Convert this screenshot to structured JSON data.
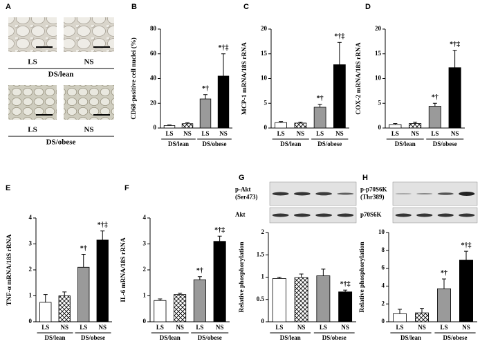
{
  "images": {
    "panel": "A",
    "rows": [
      {
        "labels": [
          "LS",
          "NS"
        ],
        "group": "DS/lean"
      },
      {
        "labels": [
          "LS",
          "NS"
        ],
        "group": "DS/obese"
      }
    ]
  },
  "blots": [
    {
      "panel": "G",
      "rows": [
        {
          "label": [
            "p-Akt",
            "(Ser473)"
          ]
        },
        {
          "label": [
            "Akt"
          ]
        }
      ]
    },
    {
      "panel": "H",
      "rows": [
        {
          "label": [
            "p-p70S6K",
            "(Thr389)"
          ]
        },
        {
          "label": [
            "p70S6K"
          ]
        }
      ]
    }
  ],
  "chart_data": [
    {
      "type": "bar",
      "panel": "B",
      "ylabel": "CD68-positive cell nuclei (%)",
      "categories": [
        "LS",
        "NS",
        "LS",
        "NS"
      ],
      "groups": [
        "DS/lean",
        "DS/obese"
      ],
      "values": [
        2,
        3.5,
        23.5,
        42
      ],
      "errors": [
        0.5,
        0.8,
        3.5,
        18
      ],
      "annotations": [
        null,
        null,
        "*†",
        "*†‡"
      ],
      "ylim": [
        0,
        80
      ],
      "yticks": [
        0,
        20,
        40,
        60,
        80
      ],
      "fills": [
        "#ffffff",
        "#ffffff",
        "#9a9a9a",
        "#000000"
      ],
      "hatch": [
        false,
        true,
        false,
        false
      ]
    },
    {
      "type": "bar",
      "panel": "C",
      "ylabel": "MCP-1 mRNA/18S rRNA",
      "categories": [
        "LS",
        "NS",
        "LS",
        "NS"
      ],
      "groups": [
        "DS/lean",
        "DS/obese"
      ],
      "values": [
        1.1,
        1.0,
        4.2,
        12.8
      ],
      "errors": [
        0.2,
        0.2,
        0.6,
        4.5
      ],
      "annotations": [
        null,
        null,
        "*†",
        "*†‡"
      ],
      "ylim": [
        0,
        20
      ],
      "yticks": [
        0,
        5,
        10,
        15,
        20
      ],
      "fills": [
        "#ffffff",
        "#ffffff",
        "#9a9a9a",
        "#000000"
      ],
      "hatch": [
        false,
        true,
        false,
        false
      ]
    },
    {
      "type": "bar",
      "panel": "D",
      "ylabel": "COX-2 mRNA/18S rRNA",
      "categories": [
        "LS",
        "NS",
        "LS",
        "NS"
      ],
      "groups": [
        "DS/lean",
        "DS/obese"
      ],
      "values": [
        0.7,
        0.9,
        4.4,
        12.2
      ],
      "errors": [
        0.2,
        0.3,
        0.6,
        3.5
      ],
      "annotations": [
        null,
        null,
        "*†",
        "*†‡"
      ],
      "ylim": [
        0,
        20
      ],
      "yticks": [
        0,
        5,
        10,
        15,
        20
      ],
      "fills": [
        "#ffffff",
        "#ffffff",
        "#9a9a9a",
        "#000000"
      ],
      "hatch": [
        false,
        true,
        false,
        false
      ]
    },
    {
      "type": "bar",
      "panel": "E",
      "ylabel": "TNF-α mRNA/18S rRNA",
      "categories": [
        "LS",
        "NS",
        "LS",
        "NS"
      ],
      "groups": [
        "DS/lean",
        "DS/obese"
      ],
      "values": [
        0.75,
        1.0,
        2.1,
        3.15
      ],
      "errors": [
        0.3,
        0.15,
        0.5,
        0.35
      ],
      "annotations": [
        null,
        null,
        "*†",
        "*†‡"
      ],
      "ylim": [
        0,
        4
      ],
      "yticks": [
        0,
        1,
        2,
        3,
        4
      ],
      "fills": [
        "#ffffff",
        "#ffffff",
        "#9a9a9a",
        "#000000"
      ],
      "hatch": [
        false,
        true,
        false,
        false
      ]
    },
    {
      "type": "bar",
      "panel": "F",
      "ylabel": "IL-6 mRNA/18S rRNA",
      "categories": [
        "LS",
        "NS",
        "LS",
        "NS"
      ],
      "groups": [
        "DS/lean",
        "DS/obese"
      ],
      "values": [
        0.82,
        1.05,
        1.62,
        3.1
      ],
      "errors": [
        0.06,
        0.05,
        0.12,
        0.2
      ],
      "annotations": [
        null,
        null,
        "*†",
        "*†‡"
      ],
      "ylim": [
        0,
        4
      ],
      "yticks": [
        0,
        1,
        2,
        3,
        4
      ],
      "fills": [
        "#ffffff",
        "#ffffff",
        "#9a9a9a",
        "#000000"
      ],
      "hatch": [
        false,
        true,
        false,
        false
      ]
    },
    {
      "type": "bar",
      "panel": "G",
      "ylabel": "Relative phosphorylation",
      "categories": [
        "LS",
        "NS",
        "LS",
        "NS"
      ],
      "groups": [
        "DS/lean",
        "DS/obese"
      ],
      "values": [
        0.97,
        0.99,
        1.03,
        0.67
      ],
      "errors": [
        0.03,
        0.08,
        0.15,
        0.04
      ],
      "annotations": [
        null,
        null,
        null,
        "*†‡"
      ],
      "ylim": [
        0,
        2
      ],
      "yticks": [
        0,
        0.5,
        1,
        1.5,
        2
      ],
      "fills": [
        "#ffffff",
        "#ffffff",
        "#9a9a9a",
        "#000000"
      ],
      "hatch": [
        false,
        true,
        false,
        false
      ]
    },
    {
      "type": "bar",
      "panel": "H",
      "ylabel": "Relative phosphorylation",
      "categories": [
        "LS",
        "NS",
        "LS",
        "NS"
      ],
      "groups": [
        "DS/lean",
        "DS/obese"
      ],
      "values": [
        0.9,
        1.0,
        3.7,
        6.9
      ],
      "errors": [
        0.5,
        0.5,
        1.1,
        1.0
      ],
      "annotations": [
        null,
        null,
        "*†",
        "*†‡"
      ],
      "ylim": [
        0,
        10
      ],
      "yticks": [
        0,
        2,
        4,
        6,
        8,
        10
      ],
      "fills": [
        "#ffffff",
        "#ffffff",
        "#9a9a9a",
        "#000000"
      ],
      "hatch": [
        false,
        true,
        false,
        false
      ]
    }
  ]
}
